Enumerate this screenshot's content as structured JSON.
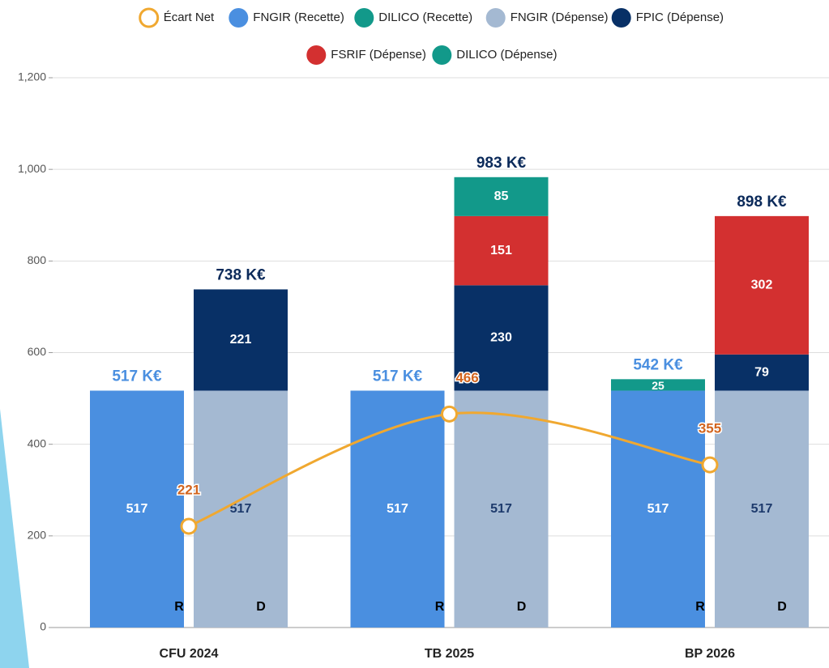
{
  "chart_data": {
    "type": "stacked_bar_line",
    "categories": [
      "CFU 2024",
      "TB 2025",
      "BP 2026"
    ],
    "stacks": [
      "R",
      "D"
    ],
    "series": [
      {
        "name": "Écart Net",
        "type": "line",
        "color": "#f0a830",
        "values": [
          221,
          466,
          355
        ]
      },
      {
        "name": "FNGIR (Recette)",
        "stack": "R",
        "color": "#4a8fe0",
        "values": [
          517,
          517,
          517
        ]
      },
      {
        "name": "DILICO (Recette)",
        "stack": "R",
        "color": "#12998a",
        "values": [
          null,
          null,
          25
        ]
      },
      {
        "name": "FNGIR (Dépense)",
        "stack": "D",
        "color": "#a4b9d2",
        "values": [
          517,
          517,
          517
        ]
      },
      {
        "name": "FPIC (Dépense)",
        "stack": "D",
        "color": "#083066",
        "values": [
          221,
          230,
          79
        ]
      },
      {
        "name": "FSRIF (Dépense)",
        "stack": "D",
        "color": "#d33030",
        "values": [
          null,
          151,
          302
        ]
      },
      {
        "name": "DILICO (Dépense)",
        "stack": "D",
        "color": "#12998a",
        "values": [
          null,
          85,
          null
        ]
      }
    ],
    "total_labels": {
      "R": [
        "517 K€",
        "517 K€",
        "542 K€"
      ],
      "D": [
        "738 K€",
        "983 K€",
        "898 K€"
      ]
    },
    "ylim": [
      0,
      1200
    ],
    "yticks": [
      0,
      200,
      400,
      600,
      800,
      {
        "value": 1000,
        "label": "1,000"
      },
      {
        "value": 1200,
        "label": "1,200"
      }
    ],
    "grid": true
  }
}
